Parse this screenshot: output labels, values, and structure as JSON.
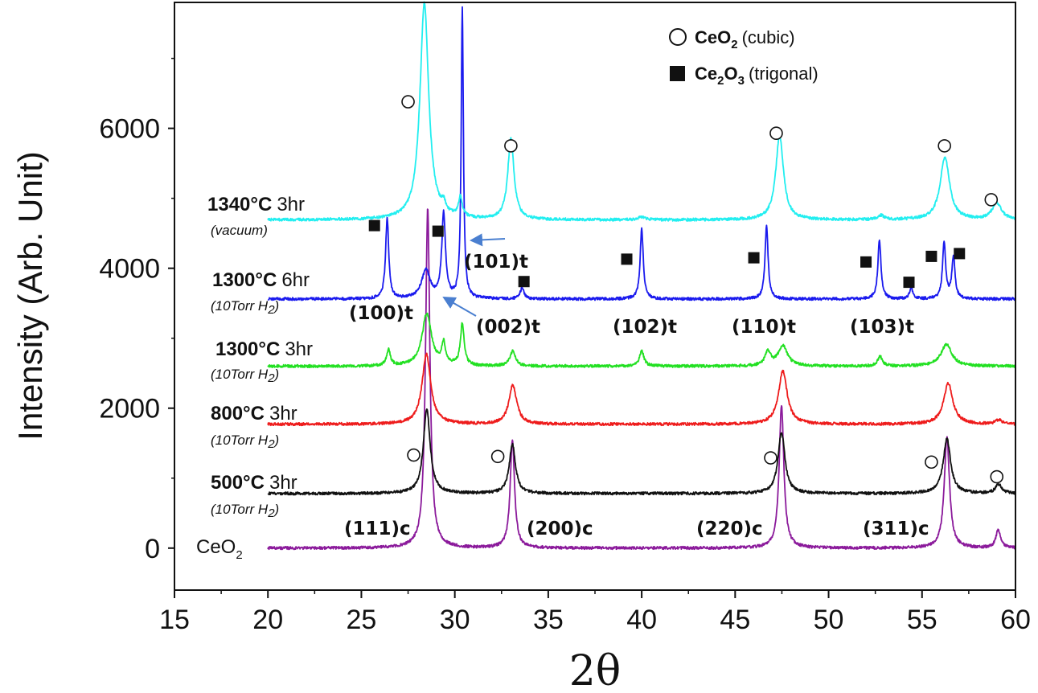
{
  "chart_data": {
    "type": "line",
    "title": "",
    "xlabel": "2θ",
    "ylabel": "Intensity (Arb. Unit)",
    "xlim": [
      15,
      60
    ],
    "ylim": [
      -600,
      7800
    ],
    "xticks": [
      "15",
      "20",
      "25",
      "30",
      "35",
      "40",
      "45",
      "50",
      "55",
      "60"
    ],
    "yticks": [
      "0",
      "2000",
      "4000",
      "6000"
    ],
    "legend": {
      "position": "top-right",
      "items": [
        {
          "marker": "open-circle",
          "formula": "CeO",
          "sub": "2",
          "phase": "(cubic)"
        },
        {
          "marker": "filled-square",
          "formula": "Ce",
          "sub1": "2",
          "mid": "O",
          "sub2": "3",
          "phase": "(trigonal)"
        }
      ]
    },
    "series": [
      {
        "name": "CeO2",
        "color": "#8b1a9b",
        "baseline": 0,
        "x_start": 20,
        "label": {
          "text": "CeO",
          "sub": "2"
        },
        "peaks": [
          [
            28.55,
            4850,
            0.14
          ],
          [
            33.08,
            1550,
            0.14
          ],
          [
            47.48,
            2050,
            0.15
          ],
          [
            56.33,
            1580,
            0.17
          ],
          [
            59.08,
            260,
            0.15
          ]
        ]
      },
      {
        "name": "500C 3hr",
        "color": "#111111",
        "baseline": 780,
        "x_start": 20,
        "label": {
          "temp": "500",
          "unit": "°C",
          "dur": "3hr",
          "cond": "10Torr H",
          "cond_sub": "2"
        },
        "peaks": [
          [
            28.5,
            1200,
            0.22
          ],
          [
            33.08,
            700,
            0.2
          ],
          [
            47.48,
            880,
            0.22
          ],
          [
            56.33,
            780,
            0.24
          ],
          [
            59.1,
            130,
            0.2
          ]
        ]
      },
      {
        "name": "800C 3hr",
        "color": "#ee1c1c",
        "baseline": 1770,
        "x_start": 20,
        "label": {
          "temp": "800",
          "unit": "°C",
          "dur": "3hr",
          "cond": "10Torr H",
          "cond_sub": "2"
        },
        "peaks": [
          [
            28.48,
            1000,
            0.28
          ],
          [
            33.1,
            560,
            0.25
          ],
          [
            47.55,
            760,
            0.28
          ],
          [
            56.4,
            580,
            0.3
          ],
          [
            59.1,
            60,
            0.2
          ]
        ]
      },
      {
        "name": "1300C 3hr",
        "color": "#22e022",
        "baseline": 2600,
        "x_start": 20,
        "label": {
          "temp": "1300",
          "unit": "°C",
          "dur": "3hr",
          "cond": "10Torr H",
          "cond_sub": "2"
        },
        "peaks": [
          [
            26.45,
            230,
            0.12
          ],
          [
            28.5,
            750,
            0.3
          ],
          [
            29.4,
            300,
            0.12
          ],
          [
            30.4,
            600,
            0.12
          ],
          [
            33.1,
            210,
            0.18
          ],
          [
            40.0,
            220,
            0.14
          ],
          [
            46.75,
            200,
            0.18
          ],
          [
            47.55,
            290,
            0.3
          ],
          [
            52.75,
            140,
            0.15
          ],
          [
            56.3,
            310,
            0.35
          ]
        ]
      },
      {
        "name": "1300C 6hr",
        "color": "#1a1aee",
        "baseline": 3560,
        "x_start": 20,
        "label": {
          "temp": "1300",
          "unit": "°C",
          "dur": "6hr",
          "cond": "10Torr H",
          "cond_sub": "2"
        },
        "peaks": [
          [
            26.38,
            1150,
            0.1
          ],
          [
            28.45,
            400,
            0.28
          ],
          [
            29.4,
            1200,
            0.12
          ],
          [
            30.4,
            4150,
            0.07
          ],
          [
            33.6,
            160,
            0.12
          ],
          [
            40.0,
            1000,
            0.1
          ],
          [
            46.68,
            1050,
            0.1
          ],
          [
            52.72,
            850,
            0.1
          ],
          [
            54.42,
            160,
            0.1
          ],
          [
            56.18,
            800,
            0.1
          ],
          [
            56.68,
            600,
            0.1
          ]
        ]
      },
      {
        "name": "1340C 3hr",
        "color": "#22eef0",
        "baseline": 4690,
        "x_start": 20,
        "label": {
          "temp": "1340",
          "unit": "°C",
          "dur": "3hr",
          "cond": "vacuum"
        },
        "peaks": [
          [
            28.37,
            3100,
            0.28
          ],
          [
            29.4,
            120,
            0.12
          ],
          [
            30.3,
            280,
            0.12
          ],
          [
            33.0,
            1150,
            0.2
          ],
          [
            40.0,
            40,
            0.2
          ],
          [
            47.38,
            1200,
            0.25
          ],
          [
            52.8,
            60,
            0.2
          ],
          [
            56.22,
            900,
            0.3
          ],
          [
            59.0,
            240,
            0.3
          ]
        ]
      }
    ],
    "peak_labels": {
      "cubic": [
        {
          "text": "(111)c",
          "x": 28.3,
          "y": 0
        },
        {
          "text": "(200)c",
          "x": 33.0,
          "y": 0
        },
        {
          "text": "(220)c",
          "x": 47.4,
          "y": 0
        },
        {
          "text": "(311)c",
          "x": 56.2,
          "y": 0
        }
      ],
      "trigonal": [
        {
          "text": "(100)t",
          "x": 26.4,
          "y": 3560
        },
        {
          "text": "(002)t",
          "x": 29.4,
          "y": 3560
        },
        {
          "text": "(101)t",
          "x": 30.4,
          "y": 3560
        },
        {
          "text": "(102)t",
          "x": 40.0,
          "y": 3560
        },
        {
          "text": "(110)t",
          "x": 46.7,
          "y": 3560
        },
        {
          "text": "(103)t",
          "x": 52.7,
          "y": 3560
        }
      ]
    },
    "markers": {
      "open_circle": [
        {
          "x": 27.5,
          "y": 6380
        },
        {
          "x": 33.0,
          "y": 5750
        },
        {
          "x": 47.2,
          "y": 5930
        },
        {
          "x": 56.2,
          "y": 5750
        },
        {
          "x": 58.7,
          "y": 4980
        },
        {
          "x": 27.8,
          "y": 1330
        },
        {
          "x": 32.3,
          "y": 1310
        },
        {
          "x": 46.9,
          "y": 1290
        },
        {
          "x": 55.5,
          "y": 1230
        },
        {
          "x": 59.0,
          "y": 1020
        }
      ],
      "filled_square": [
        {
          "x": 25.7,
          "y": 4610
        },
        {
          "x": 29.1,
          "y": 4530
        },
        {
          "x": 33.7,
          "y": 3810
        },
        {
          "x": 39.2,
          "y": 4130
        },
        {
          "x": 46.0,
          "y": 4150
        },
        {
          "x": 52.0,
          "y": 4090
        },
        {
          "x": 54.3,
          "y": 3800
        },
        {
          "x": 55.5,
          "y": 4170
        },
        {
          "x": 57.0,
          "y": 4210
        }
      ]
    }
  }
}
